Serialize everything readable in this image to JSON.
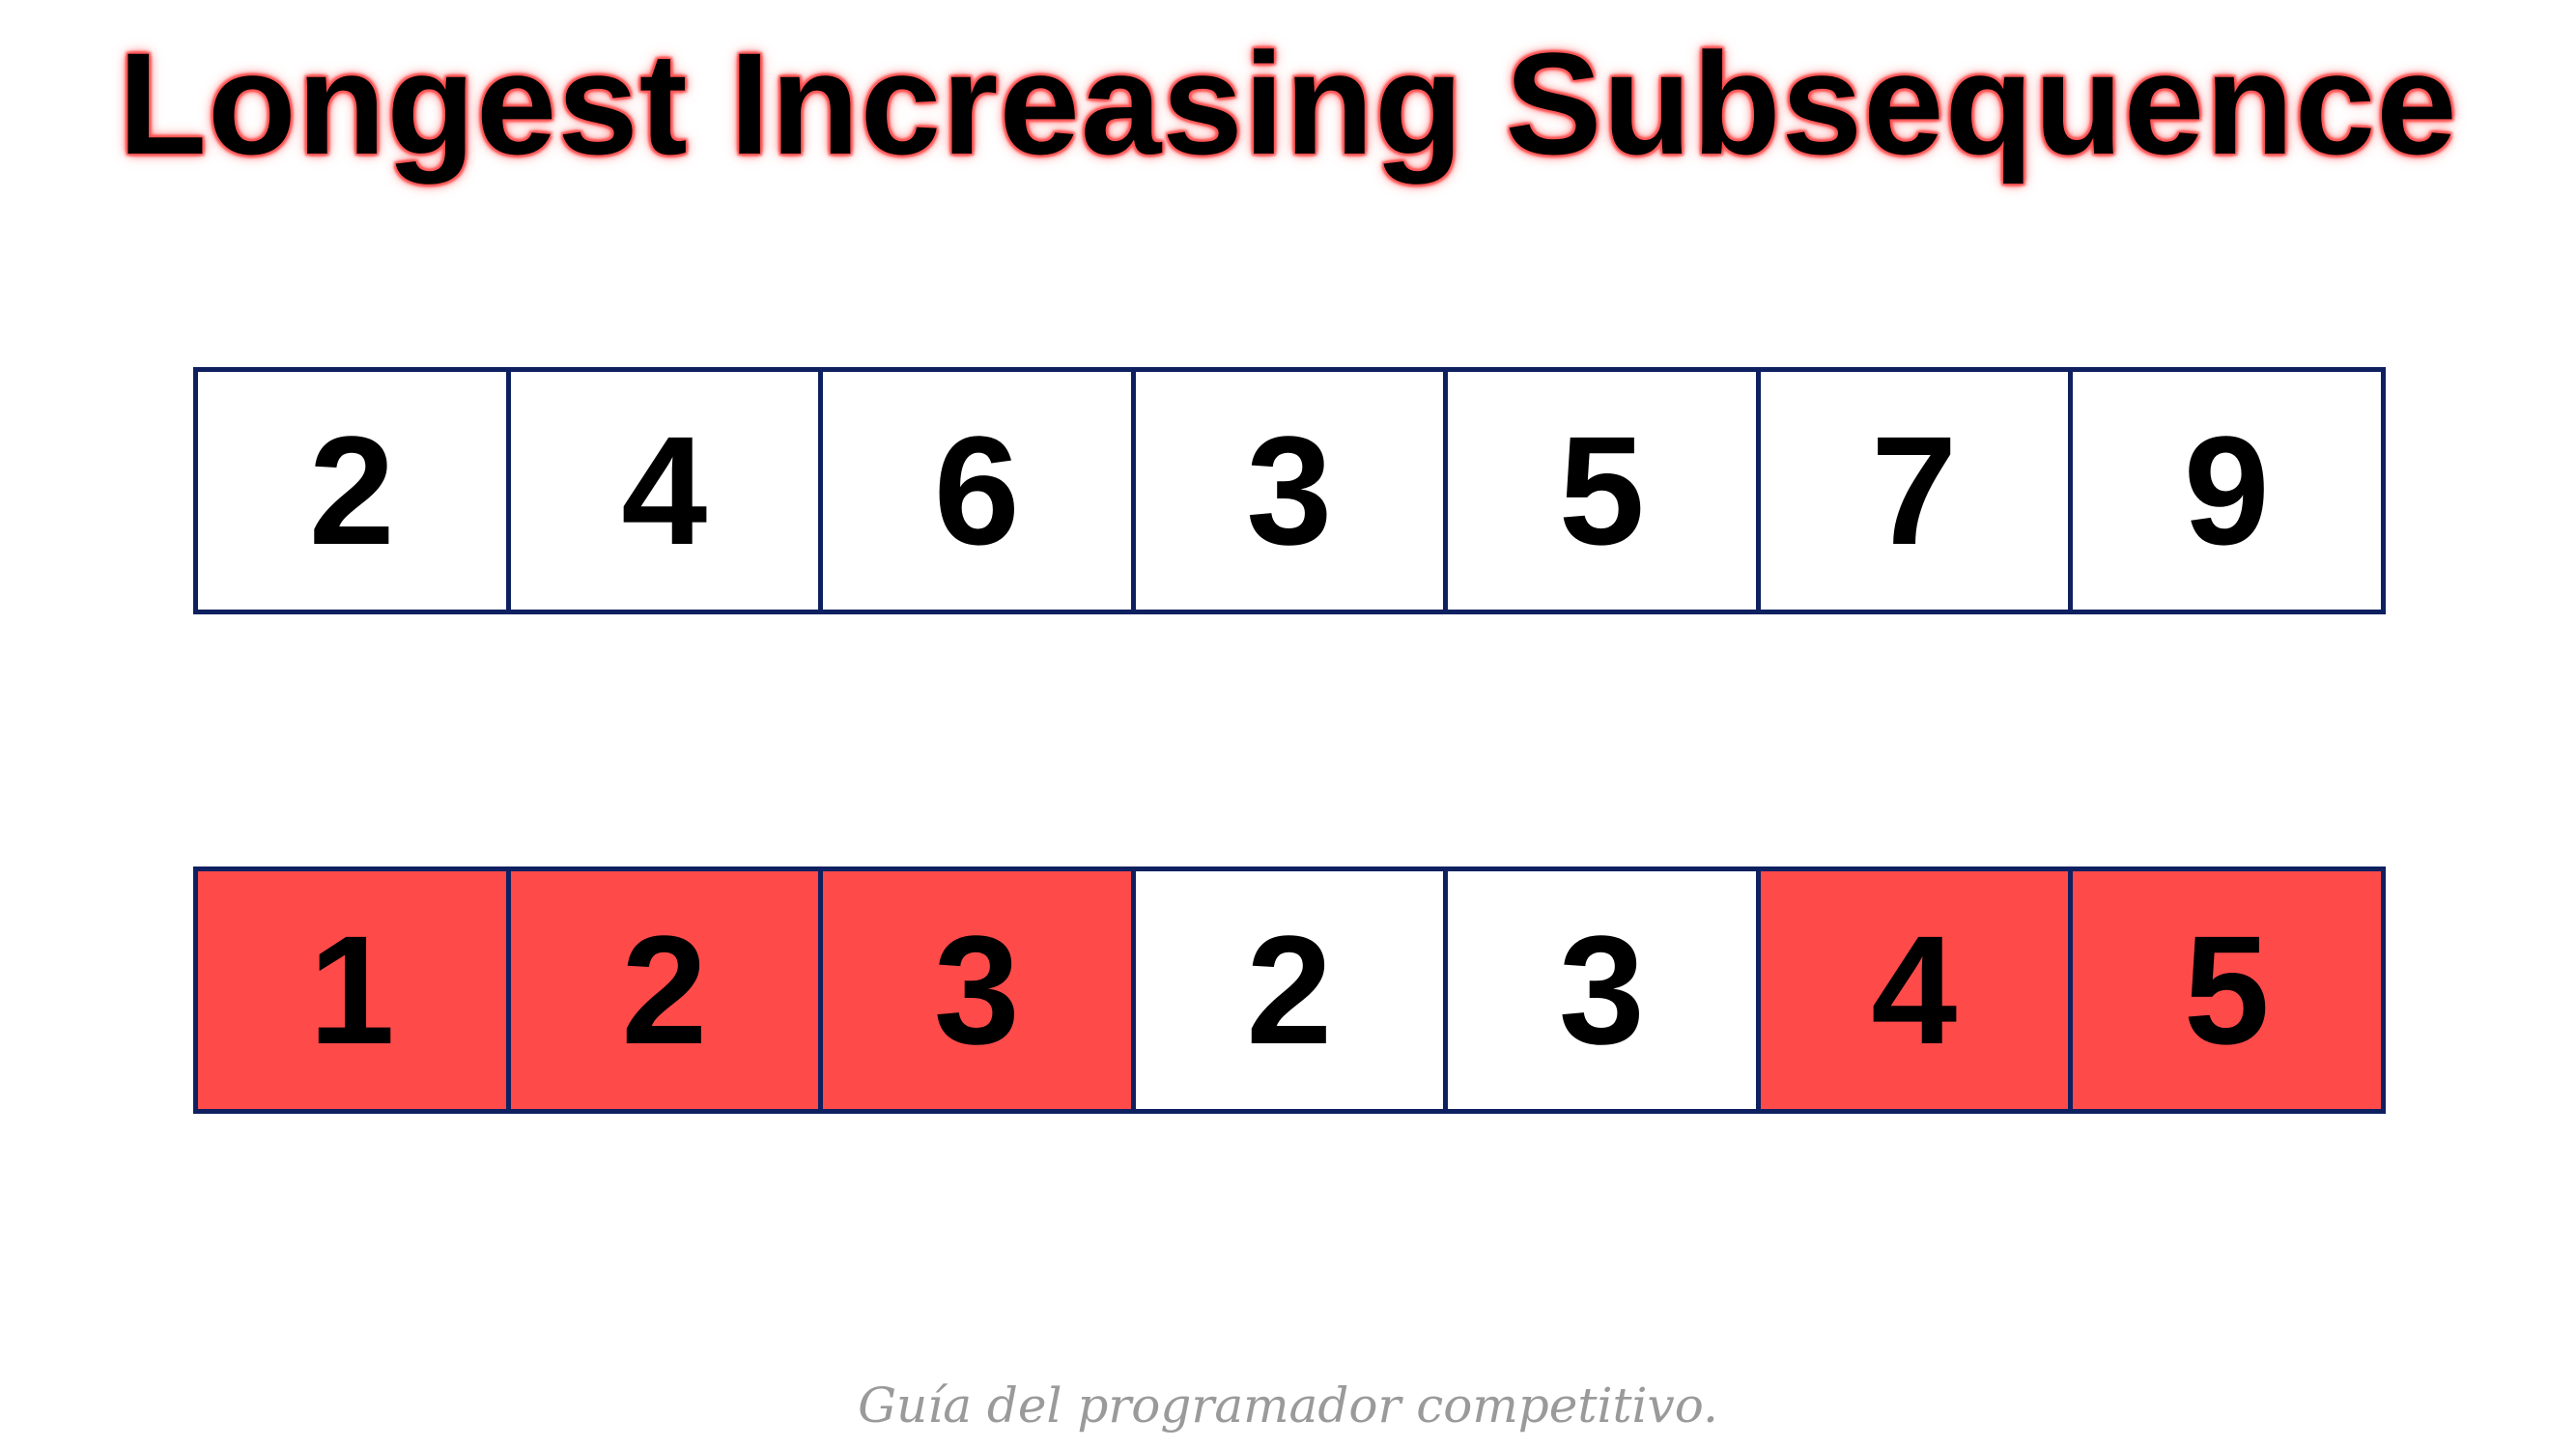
{
  "title": "Longest Increasing Subsequence",
  "colors": {
    "border": "#0f2060",
    "highlight": "#ff4a4a",
    "cell_background": "#ffffff",
    "footer_text": "#9a9a9a"
  },
  "sequence": {
    "values": [
      "2",
      "4",
      "6",
      "3",
      "5",
      "7",
      "9"
    ]
  },
  "lis_lengths": {
    "values": [
      "1",
      "2",
      "3",
      "2",
      "3",
      "4",
      "5"
    ],
    "highlighted": [
      true,
      true,
      true,
      false,
      false,
      true,
      true
    ]
  },
  "footer": "Guía del programador competitivo."
}
